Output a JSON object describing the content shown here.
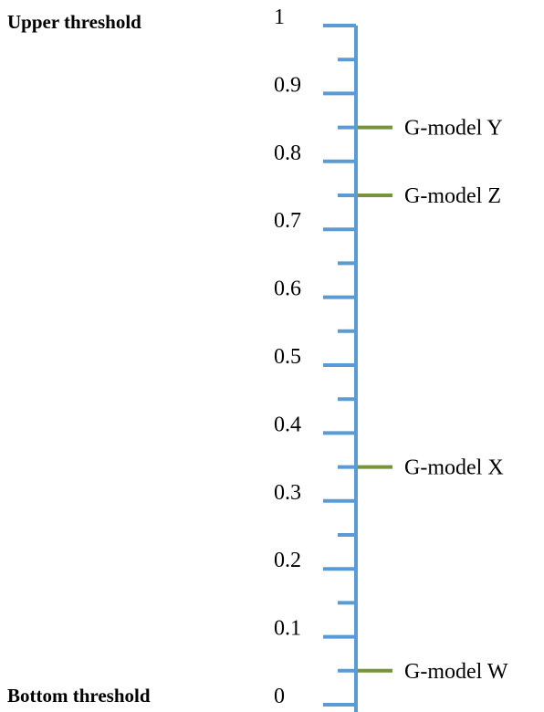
{
  "thresholds": {
    "upper": "Upper threshold",
    "bottom": "Bottom threshold"
  },
  "chart_data": {
    "type": "number-line",
    "range": [
      0,
      1
    ],
    "major_step": 0.1,
    "minor_step": 0.05,
    "tick_labels": [
      "0",
      "0.1",
      "0.2",
      "0.3",
      "0.4",
      "0.5",
      "0.6",
      "0.7",
      "0.8",
      "0.9",
      "1"
    ],
    "markers": [
      {
        "label": "G-model Y",
        "value": 0.85
      },
      {
        "label": "G-model Z",
        "value": 0.75
      },
      {
        "label": "G-model X",
        "value": 0.35
      },
      {
        "label": "G-model W",
        "value": 0.05
      }
    ],
    "colors": {
      "axis": "#5b9bd5",
      "marker": "#77933c"
    }
  }
}
